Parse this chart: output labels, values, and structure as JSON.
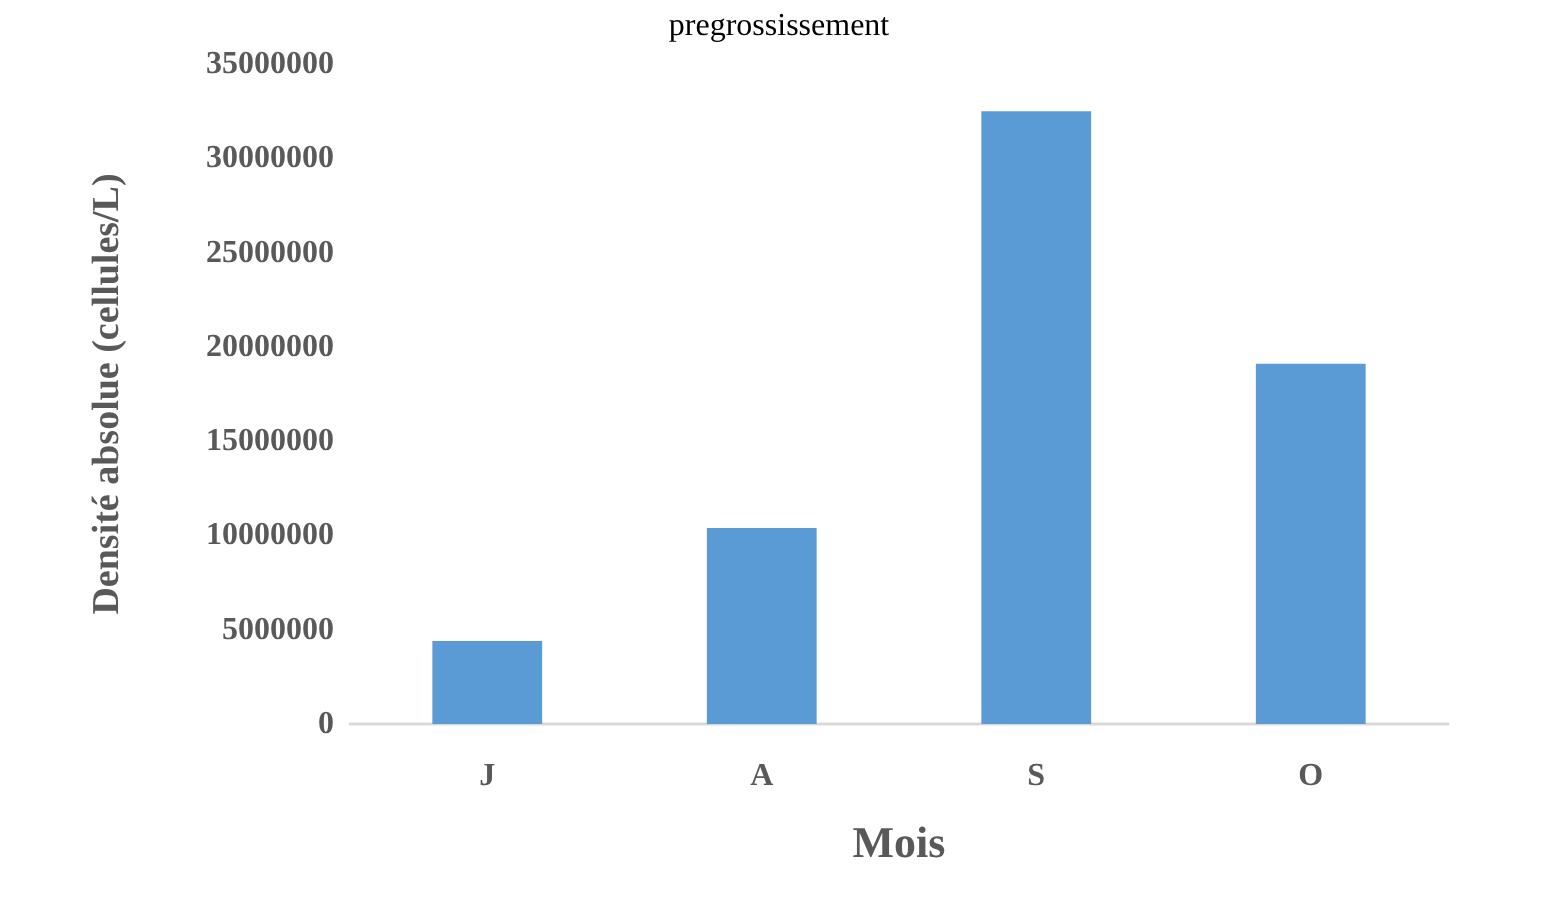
{
  "chart_data": {
    "type": "bar",
    "title": "pregrossissement",
    "xlabel": "Mois",
    "ylabel": "Densité absolue (cellules/L)",
    "categories": [
      "J",
      "A",
      "S",
      "O"
    ],
    "values": [
      4400000,
      10400000,
      32500000,
      19100000
    ],
    "color": "#5b9bd5",
    "ylim": [
      0,
      35000000
    ],
    "yticks": [
      0,
      5000000,
      10000000,
      15000000,
      20000000,
      25000000,
      30000000,
      35000000
    ],
    "grid": false
  }
}
